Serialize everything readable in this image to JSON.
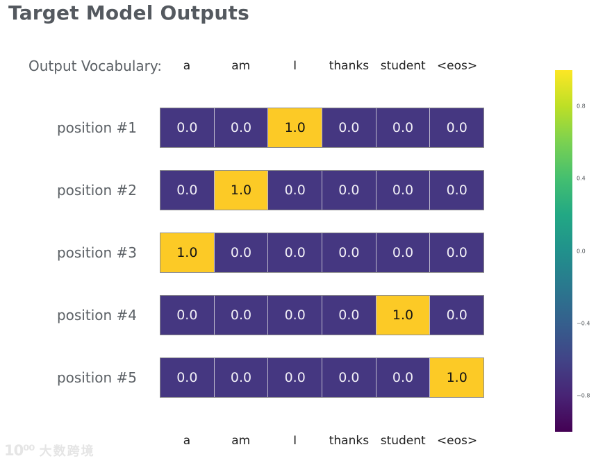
{
  "title": "Target Model Outputs",
  "vocab": {
    "label": "Output Vocabulary:",
    "tokens": [
      "a",
      "am",
      "I",
      "thanks",
      "student",
      "<eos>"
    ]
  },
  "rows": [
    {
      "label": "position #1",
      "cells": [
        "0.0",
        "0.0",
        "1.0",
        "0.0",
        "0.0",
        "0.0"
      ]
    },
    {
      "label": "position #2",
      "cells": [
        "0.0",
        "1.0",
        "0.0",
        "0.0",
        "0.0",
        "0.0"
      ]
    },
    {
      "label": "position #3",
      "cells": [
        "1.0",
        "0.0",
        "0.0",
        "0.0",
        "0.0",
        "0.0"
      ]
    },
    {
      "label": "position #4",
      "cells": [
        "0.0",
        "0.0",
        "0.0",
        "0.0",
        "1.0",
        "0.0"
      ]
    },
    {
      "label": "position #5",
      "cells": [
        "0.0",
        "0.0",
        "0.0",
        "0.0",
        "0.0",
        "1.0"
      ]
    }
  ],
  "colorbar": {
    "ticks": [
      "0.8",
      "0.4",
      "0.0",
      "−0.4",
      "−0.8"
    ]
  },
  "colors": {
    "title": "#54595f",
    "label": "#5b6065",
    "token": "#1f1f1f",
    "cell-low": "#453781",
    "cell-high": "#fcca26"
  },
  "watermark": {
    "logo": "10⁰⁰",
    "text": "大数跨境"
  },
  "chart_data": {
    "type": "heatmap",
    "title": "Target Model Outputs",
    "x_categories": [
      "a",
      "am",
      "I",
      "thanks",
      "student",
      "<eos>"
    ],
    "y_categories": [
      "position #1",
      "position #2",
      "position #3",
      "position #4",
      "position #5"
    ],
    "values": [
      [
        0.0,
        0.0,
        1.0,
        0.0,
        0.0,
        0.0
      ],
      [
        0.0,
        1.0,
        0.0,
        0.0,
        0.0,
        0.0
      ],
      [
        1.0,
        0.0,
        0.0,
        0.0,
        0.0,
        0.0
      ],
      [
        0.0,
        0.0,
        0.0,
        0.0,
        1.0,
        0.0
      ],
      [
        0.0,
        0.0,
        0.0,
        0.0,
        0.0,
        1.0
      ]
    ],
    "colormap": "viridis",
    "colorbar_ticks": [
      0.8,
      0.4,
      0.0,
      -0.4,
      -0.8
    ],
    "colorbar_range": [
      -1,
      1
    ],
    "legend_position": "right",
    "grid": false
  }
}
